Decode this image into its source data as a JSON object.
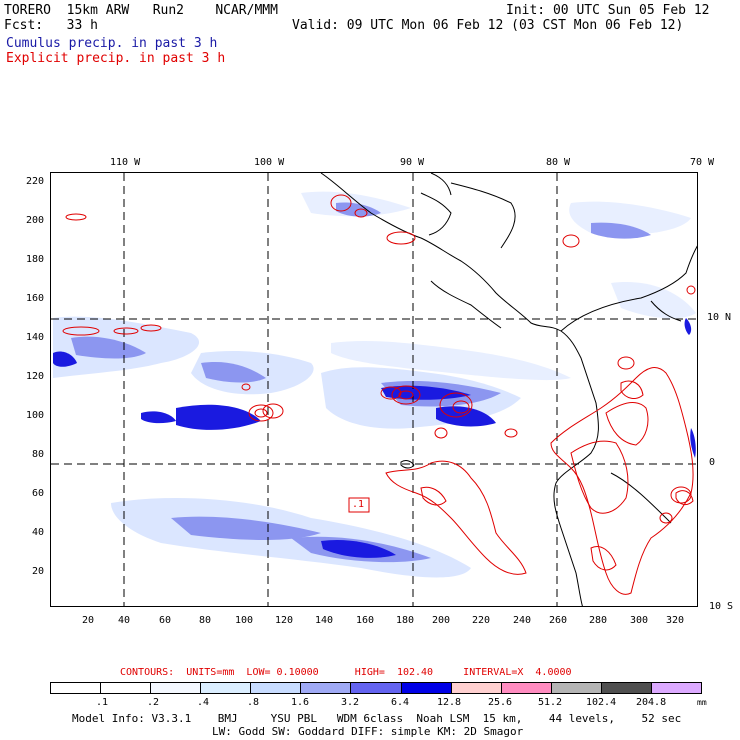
{
  "header": {
    "line1_left": "TORERO  15km ARW   Run2    NCAR/MMM",
    "line1_right": "Init: 00 UTC Sun 05 Feb 12",
    "line2_left": "Fcst:   33 h",
    "line2_right": "Valid: 09 UTC Mon 06 Feb 12 (03 CST Mon 06 Feb 12)",
    "line3": "Cumulus precip. in past 3 h",
    "line4": "Explicit precip. in past 3 h"
  },
  "map": {
    "lon_labels": [
      "110 W",
      "100 W",
      "90 W",
      "80 W",
      "70 W"
    ],
    "lat_labels": [
      "10 N",
      "0",
      "10 S"
    ],
    "y_ticks": [
      "220",
      "200",
      "180",
      "160",
      "140",
      "120",
      "100",
      "80",
      "60",
      "40",
      "20"
    ],
    "x_ticks": [
      "20",
      "40",
      "60",
      "80",
      "100",
      "120",
      "140",
      "160",
      "180",
      "200",
      "220",
      "240",
      "260",
      "280",
      "300",
      "320"
    ],
    "box_label": ".1",
    "colors": {
      "cumulus_light": "#d8e8ff",
      "cumulus_mid": "#8c96f0",
      "cumulus_dark": "#1a1ae0",
      "explicit": "#e00000",
      "coast": "#000000"
    }
  },
  "contours": {
    "line": "CONTOURS:  UNITS=mm  LOW= 0.10000      HIGH=  102.40     INTERVAL=X  4.0000"
  },
  "colorbar": {
    "labels": [
      ".1",
      ".2",
      ".4",
      ".8",
      "1.6",
      "3.2",
      "6.4",
      "12.8",
      "25.6",
      "51.2",
      "102.4",
      "204.8"
    ],
    "colors": [
      "#ffffff",
      "#ffffff",
      "#f4f8ff",
      "#dbeeff",
      "#c8dcff",
      "#a0aaf5",
      "#6464f0",
      "#0000e6",
      "#ffd0d0",
      "#ff8cc0",
      "#b4b4b4",
      "#505050",
      "#dcaaff"
    ],
    "units": "mm"
  },
  "footer": {
    "model_info": "Model Info: V3.3.1    BMJ     YSU PBL   WDM 6class  Noah LSM  15 km,    44 levels,    52 sec",
    "model_info2": "LW: Godd SW: Goddard DIFF: simple KM: 2D Smagor"
  }
}
